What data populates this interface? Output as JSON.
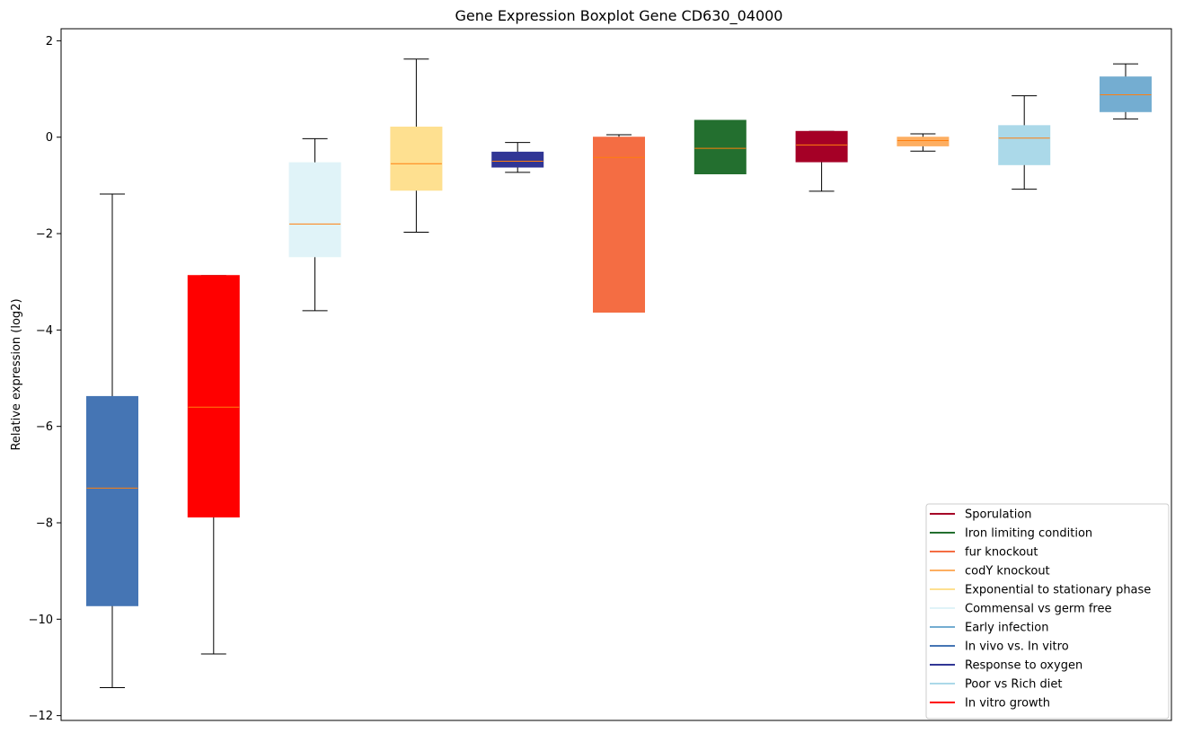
{
  "chart_data": {
    "type": "boxplot",
    "title": "Gene Expression Boxplot Gene CD630_04000",
    "xlabel": "",
    "ylabel": "Relative expression (log2)",
    "ylim": [
      -12.1,
      2.25
    ],
    "yticks": [
      2,
      0,
      -2,
      -4,
      -6,
      -8,
      -10,
      -12
    ],
    "ytick_labels": [
      "2",
      "0",
      "−2",
      "−4",
      "−6",
      "−8",
      "−10",
      "−12"
    ],
    "x_tick_labels_shown": false,
    "median_color": "#ff7f0e",
    "whisker_color": "#000000",
    "boxes": [
      {
        "name": "In vivo vs. In vitro",
        "color": "#4575b4",
        "whisker_low": -11.42,
        "q1": -9.72,
        "median": -7.28,
        "q3": -5.38,
        "whisker_high": -1.18
      },
      {
        "name": "In vitro growth",
        "color": "#ff0000",
        "whisker_low": -10.72,
        "q1": -7.88,
        "median": -5.6,
        "q3": -2.87,
        "whisker_high": -2.87
      },
      {
        "name": "Commensal vs germ free",
        "color": "#e0f3f8",
        "whisker_low": -3.6,
        "q1": -2.48,
        "median": -1.8,
        "q3": -0.53,
        "whisker_high": -0.03
      },
      {
        "name": "Exponential to stationary phase",
        "color": "#fee090",
        "whisker_low": -1.97,
        "q1": -1.1,
        "median": -0.55,
        "q3": 0.21,
        "whisker_high": 1.62
      },
      {
        "name": "Response to oxygen",
        "color": "#313695",
        "whisker_low": -0.73,
        "q1": -0.62,
        "median": -0.5,
        "q3": -0.31,
        "whisker_high": -0.11
      },
      {
        "name": "fur knockout",
        "color": "#f46d43",
        "whisker_low": -3.63,
        "q1": -3.63,
        "median": -0.42,
        "q3": 0.0,
        "whisker_high": 0.05
      },
      {
        "name": "Iron limiting condition",
        "color": "#236f2f",
        "whisker_low": -0.76,
        "q1": -0.76,
        "median": -0.23,
        "q3": 0.35,
        "whisker_high": 0.35
      },
      {
        "name": "Sporulation",
        "color": "#a50026",
        "whisker_low": -1.12,
        "q1": -0.51,
        "median": -0.16,
        "q3": 0.12,
        "whisker_high": 0.12
      },
      {
        "name": "codY knockout",
        "color": "#fdae61",
        "whisker_low": -0.29,
        "q1": -0.18,
        "median": -0.07,
        "q3": 0.0,
        "whisker_high": 0.07
      },
      {
        "name": "Poor vs Rich diet",
        "color": "#abd9e9",
        "whisker_low": -1.08,
        "q1": -0.57,
        "median": -0.02,
        "q3": 0.24,
        "whisker_high": 0.86
      },
      {
        "name": "Early infection",
        "color": "#74add1",
        "whisker_low": 0.38,
        "q1": 0.53,
        "median": 0.88,
        "q3": 1.25,
        "whisker_high": 1.52
      }
    ],
    "legend": {
      "placement": "lower-right",
      "entries": [
        {
          "label": "Sporulation",
          "color": "#a50026"
        },
        {
          "label": "Iron limiting condition",
          "color": "#236f2f"
        },
        {
          "label": "fur knockout",
          "color": "#f46d43"
        },
        {
          "label": "codY knockout",
          "color": "#fdae61"
        },
        {
          "label": "Exponential to stationary phase",
          "color": "#fee090"
        },
        {
          "label": "Commensal vs germ free",
          "color": "#e0f3f8"
        },
        {
          "label": "Early infection",
          "color": "#74add1"
        },
        {
          "label": "In vivo vs. In vitro",
          "color": "#4575b4"
        },
        {
          "label": "Response to oxygen",
          "color": "#313695"
        },
        {
          "label": "Poor vs Rich diet",
          "color": "#abd9e9"
        },
        {
          "label": "In vitro growth",
          "color": "#ff0000"
        }
      ]
    }
  }
}
